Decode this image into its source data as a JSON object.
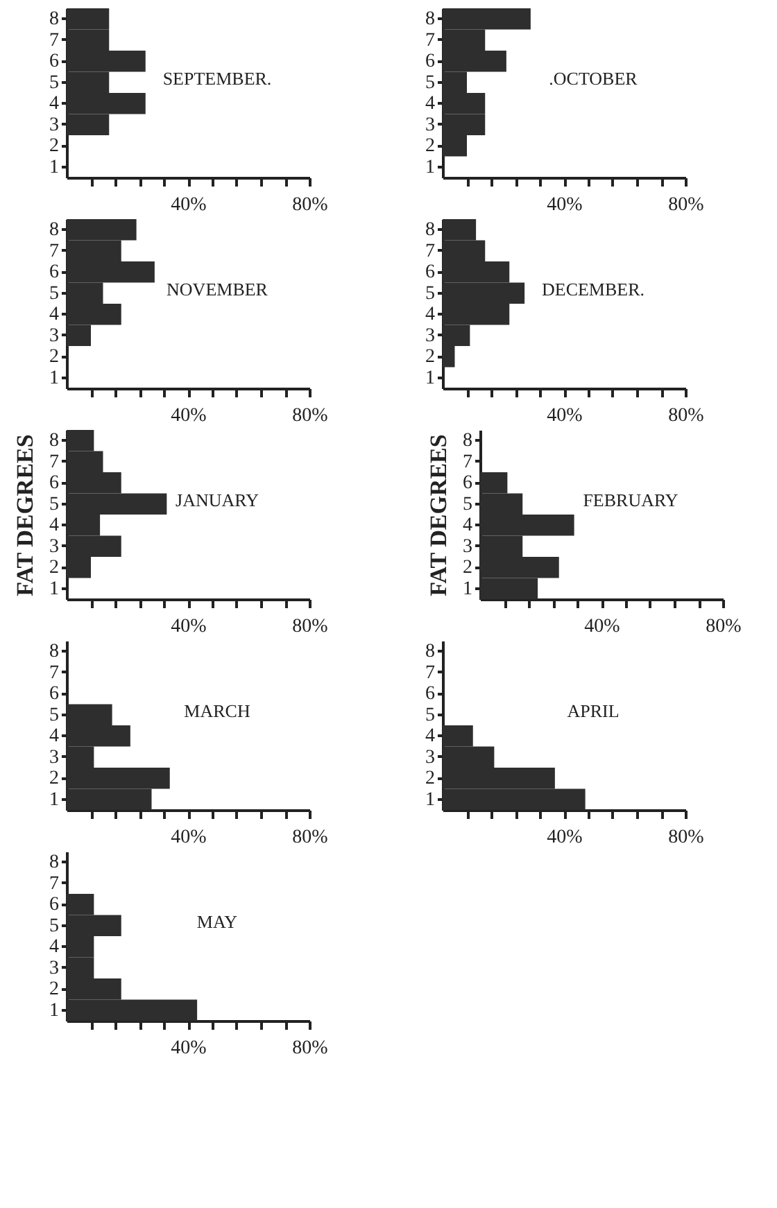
{
  "chart_data": [
    {
      "type": "bar",
      "orientation": "horizontal",
      "title": "SEPTEMBER.",
      "categories": [
        "8",
        "7",
        "6",
        "5",
        "4",
        "3",
        "2",
        "1"
      ],
      "values": [
        14,
        14,
        26,
        14,
        26,
        14,
        0,
        0
      ],
      "color": "#2e2e2e",
      "xlim": [
        0,
        80
      ],
      "xticks": [
        {
          "value": 8,
          "label": null
        },
        {
          "value": 16,
          "label": null
        },
        {
          "value": 24,
          "label": null
        },
        {
          "value": 32,
          "label": null
        },
        {
          "value": 40,
          "label": "40%"
        },
        {
          "value": 48,
          "label": null
        },
        {
          "value": 56,
          "label": null
        },
        {
          "value": 64,
          "label": null
        },
        {
          "value": 72,
          "label": null
        },
        {
          "value": 80,
          "label": "80%"
        }
      ],
      "grid": false
    },
    {
      "type": "bar",
      "orientation": "horizontal",
      "title": ".OCTOBER",
      "categories": [
        "8",
        "7",
        "6",
        "5",
        "4",
        "3",
        "2",
        "1"
      ],
      "values": [
        29,
        14,
        21,
        8,
        14,
        14,
        8,
        0
      ],
      "color": "#2e2e2e",
      "xlim": [
        0,
        80
      ],
      "xticks": [
        {
          "value": 8,
          "label": null
        },
        {
          "value": 16,
          "label": null
        },
        {
          "value": 24,
          "label": null
        },
        {
          "value": 32,
          "label": null
        },
        {
          "value": 40,
          "label": "40%"
        },
        {
          "value": 48,
          "label": null
        },
        {
          "value": 56,
          "label": null
        },
        {
          "value": 64,
          "label": null
        },
        {
          "value": 72,
          "label": null
        },
        {
          "value": 80,
          "label": "80%"
        }
      ],
      "grid": false
    },
    {
      "type": "bar",
      "orientation": "horizontal",
      "title": "NOVEMBER",
      "categories": [
        "8",
        "7",
        "6",
        "5",
        "4",
        "3",
        "2",
        "1"
      ],
      "values": [
        23,
        18,
        29,
        12,
        18,
        8,
        0,
        0
      ],
      "color": "#2e2e2e",
      "xlim": [
        0,
        80
      ],
      "xticks": [
        {
          "value": 8,
          "label": null
        },
        {
          "value": 16,
          "label": null
        },
        {
          "value": 24,
          "label": null
        },
        {
          "value": 32,
          "label": null
        },
        {
          "value": 40,
          "label": "40%"
        },
        {
          "value": 48,
          "label": null
        },
        {
          "value": 56,
          "label": null
        },
        {
          "value": 64,
          "label": null
        },
        {
          "value": 72,
          "label": null
        },
        {
          "value": 80,
          "label": "80%"
        }
      ],
      "grid": false
    },
    {
      "type": "bar",
      "orientation": "horizontal",
      "title": "DECEMBER.",
      "categories": [
        "8",
        "7",
        "6",
        "5",
        "4",
        "3",
        "2",
        "1"
      ],
      "values": [
        11,
        14,
        22,
        27,
        22,
        9,
        4,
        0
      ],
      "color": "#2e2e2e",
      "xlim": [
        0,
        80
      ],
      "xticks": [
        {
          "value": 8,
          "label": null
        },
        {
          "value": 16,
          "label": null
        },
        {
          "value": 24,
          "label": null
        },
        {
          "value": 32,
          "label": null
        },
        {
          "value": 40,
          "label": "40%"
        },
        {
          "value": 48,
          "label": null
        },
        {
          "value": 56,
          "label": null
        },
        {
          "value": 64,
          "label": null
        },
        {
          "value": 72,
          "label": null
        },
        {
          "value": 80,
          "label": "80%"
        }
      ],
      "grid": false
    },
    {
      "type": "bar",
      "orientation": "horizontal",
      "title": "JANUARY",
      "ylabel": "FAT DEGREES",
      "categories": [
        "8",
        "7",
        "6",
        "5",
        "4",
        "3",
        "2",
        "1"
      ],
      "values": [
        9,
        12,
        18,
        33,
        11,
        18,
        8,
        0
      ],
      "color": "#2e2e2e",
      "xlim": [
        0,
        80
      ],
      "xticks": [
        {
          "value": 8,
          "label": null
        },
        {
          "value": 16,
          "label": null
        },
        {
          "value": 24,
          "label": null
        },
        {
          "value": 32,
          "label": null
        },
        {
          "value": 40,
          "label": "40%"
        },
        {
          "value": 48,
          "label": null
        },
        {
          "value": 56,
          "label": null
        },
        {
          "value": 64,
          "label": null
        },
        {
          "value": 72,
          "label": null
        },
        {
          "value": 80,
          "label": "80%"
        }
      ],
      "grid": false
    },
    {
      "type": "bar",
      "orientation": "horizontal",
      "title": "FEBRUARY",
      "ylabel": "FAT DEGREES",
      "categories": [
        "8",
        "7",
        "6",
        "5",
        "4",
        "3",
        "2",
        "1"
      ],
      "values": [
        0,
        0,
        9,
        14,
        31,
        14,
        26,
        19
      ],
      "color": "#2e2e2e",
      "xlim": [
        0,
        80
      ],
      "xticks": [
        {
          "value": 8,
          "label": null
        },
        {
          "value": 16,
          "label": null
        },
        {
          "value": 24,
          "label": null
        },
        {
          "value": 32,
          "label": null
        },
        {
          "value": 40,
          "label": "40%"
        },
        {
          "value": 48,
          "label": null
        },
        {
          "value": 56,
          "label": null
        },
        {
          "value": 64,
          "label": null
        },
        {
          "value": 72,
          "label": null
        },
        {
          "value": 80,
          "label": "80%"
        }
      ],
      "grid": false
    },
    {
      "type": "bar",
      "orientation": "horizontal",
      "title": "MARCH",
      "categories": [
        "8",
        "7",
        "6",
        "5",
        "4",
        "3",
        "2",
        "1"
      ],
      "values": [
        0,
        0,
        0,
        15,
        21,
        9,
        34,
        28
      ],
      "color": "#2e2e2e",
      "xlim": [
        0,
        80
      ],
      "xticks": [
        {
          "value": 8,
          "label": null
        },
        {
          "value": 16,
          "label": null
        },
        {
          "value": 24,
          "label": null
        },
        {
          "value": 32,
          "label": null
        },
        {
          "value": 40,
          "label": "40%"
        },
        {
          "value": 48,
          "label": null
        },
        {
          "value": 56,
          "label": null
        },
        {
          "value": 64,
          "label": null
        },
        {
          "value": 72,
          "label": null
        },
        {
          "value": 80,
          "label": "80%"
        }
      ],
      "grid": false
    },
    {
      "type": "bar",
      "orientation": "horizontal",
      "title": "APRIL",
      "categories": [
        "8",
        "7",
        "6",
        "5",
        "4",
        "3",
        "2",
        "1"
      ],
      "values": [
        0,
        0,
        0,
        0,
        10,
        17,
        37,
        47
      ],
      "color": "#2e2e2e",
      "xlim": [
        0,
        80
      ],
      "xticks": [
        {
          "value": 8,
          "label": null
        },
        {
          "value": 16,
          "label": null
        },
        {
          "value": 24,
          "label": null
        },
        {
          "value": 32,
          "label": null
        },
        {
          "value": 40,
          "label": "40%"
        },
        {
          "value": 48,
          "label": null
        },
        {
          "value": 56,
          "label": null
        },
        {
          "value": 64,
          "label": null
        },
        {
          "value": 72,
          "label": null
        },
        {
          "value": 80,
          "label": "80%"
        }
      ],
      "grid": false
    },
    {
      "type": "bar",
      "orientation": "horizontal",
      "title": "MAY",
      "categories": [
        "8",
        "7",
        "6",
        "5",
        "4",
        "3",
        "2",
        "1"
      ],
      "values": [
        0,
        0,
        9,
        18,
        9,
        9,
        18,
        43
      ],
      "color": "#2e2e2e",
      "xlim": [
        0,
        80
      ],
      "xticks": [
        {
          "value": 8,
          "label": null
        },
        {
          "value": 16,
          "label": null
        },
        {
          "value": 24,
          "label": null
        },
        {
          "value": 32,
          "label": null
        },
        {
          "value": 40,
          "label": "40%"
        },
        {
          "value": 48,
          "label": null
        },
        {
          "value": 56,
          "label": null
        },
        {
          "value": 64,
          "label": null
        },
        {
          "value": 72,
          "label": null
        },
        {
          "value": 80,
          "label": "80%"
        }
      ],
      "grid": false
    }
  ]
}
